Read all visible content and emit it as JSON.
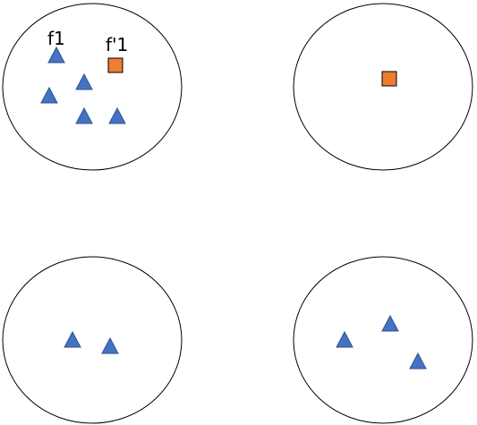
{
  "colors": {
    "background": "#ffffff",
    "circle_stroke": "#000000",
    "triangle_fill": "#4472c4",
    "triangle_stroke": "#2f528f",
    "square_fill": "#ed7d31",
    "square_stroke": "#000000"
  },
  "diagram": {
    "groups": [
      {
        "name": "top-left",
        "triangles": 5,
        "squares": 1,
        "labels": {
          "triangle": "f1",
          "square": "f'1"
        }
      },
      {
        "name": "top-right",
        "triangles": 0,
        "squares": 1
      },
      {
        "name": "bottom-left",
        "triangles": 2,
        "squares": 0
      },
      {
        "name": "bottom-right",
        "triangles": 3,
        "squares": 0
      }
    ]
  }
}
